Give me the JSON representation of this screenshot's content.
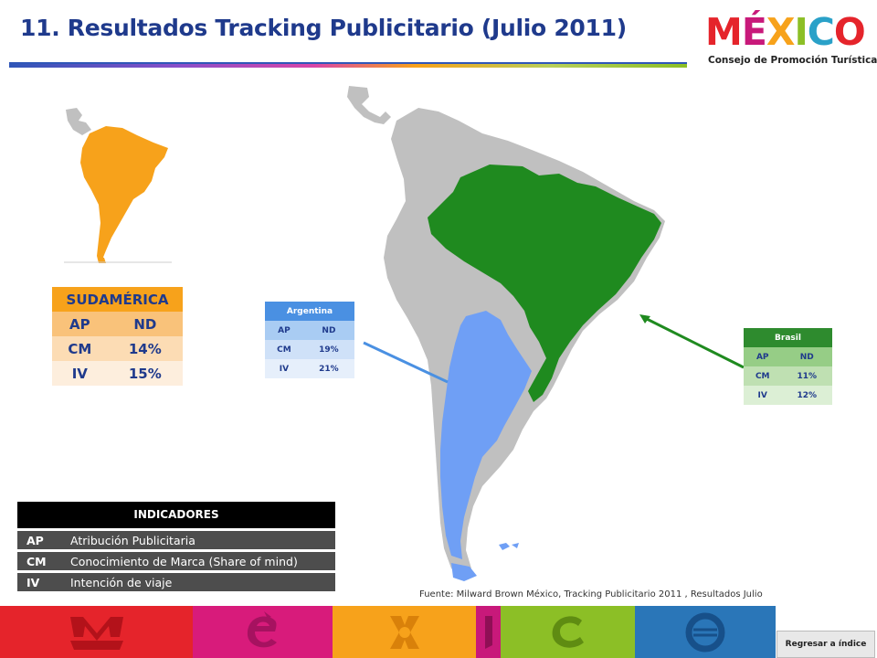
{
  "title": "11. Resultados Tracking Publicitario (Julio 2011)",
  "logo": {
    "word_letters": [
      "M",
      "É",
      "X",
      "I",
      "C",
      "O"
    ],
    "word_colors": [
      "#e5242b",
      "#c8197a",
      "#f7a21b",
      "#8cbf26",
      "#2aa1c8",
      "#e5242b"
    ],
    "subtitle": "Consejo de Promoción Turística"
  },
  "sudamerica": {
    "header": "SUDAMÉRICA",
    "rows": [
      {
        "k": "AP",
        "v": "ND"
      },
      {
        "k": "CM",
        "v": "14%"
      },
      {
        "k": "IV",
        "v": "15%"
      }
    ]
  },
  "argentina": {
    "header": "Argentina",
    "rows": [
      {
        "k": "AP",
        "v": "ND"
      },
      {
        "k": "CM",
        "v": "19%"
      },
      {
        "k": "IV",
        "v": "21%"
      }
    ]
  },
  "brasil": {
    "header": "Brasil",
    "rows": [
      {
        "k": "AP",
        "v": "ND"
      },
      {
        "k": "CM",
        "v": "11%"
      },
      {
        "k": "IV",
        "v": "12%"
      }
    ]
  },
  "indicadores": {
    "header": "INDICADORES",
    "rows": [
      {
        "k": "AP",
        "v": "Atribución Publicitaria"
      },
      {
        "k": "CM",
        "v": "Conocimiento de Marca (Share of mind)"
      },
      {
        "k": "IV",
        "v": "Intención de viaje"
      }
    ]
  },
  "source": "Fuente: Milward Brown México, Tracking Publicitario 2011 , Resultados Julio",
  "back_button": "Regresar a índice",
  "colors": {
    "title": "#1f3a8c",
    "continent_gray": "#c0c0c0",
    "brazil_green": "#1f8a1f",
    "argentina_blue": "#6f9ff5",
    "south_america_orange": "#f7a21b",
    "band": [
      "#e5242b",
      "#d81b7b",
      "#f7a21b",
      "#c8197a",
      "#8cbf26",
      "#2a76b8"
    ]
  },
  "band_icons": [
    "m-mask-icon",
    "e-swirl-icon",
    "x-sun-icon",
    "i-glyph-icon",
    "c-wave-icon",
    "o-circle-icon"
  ]
}
